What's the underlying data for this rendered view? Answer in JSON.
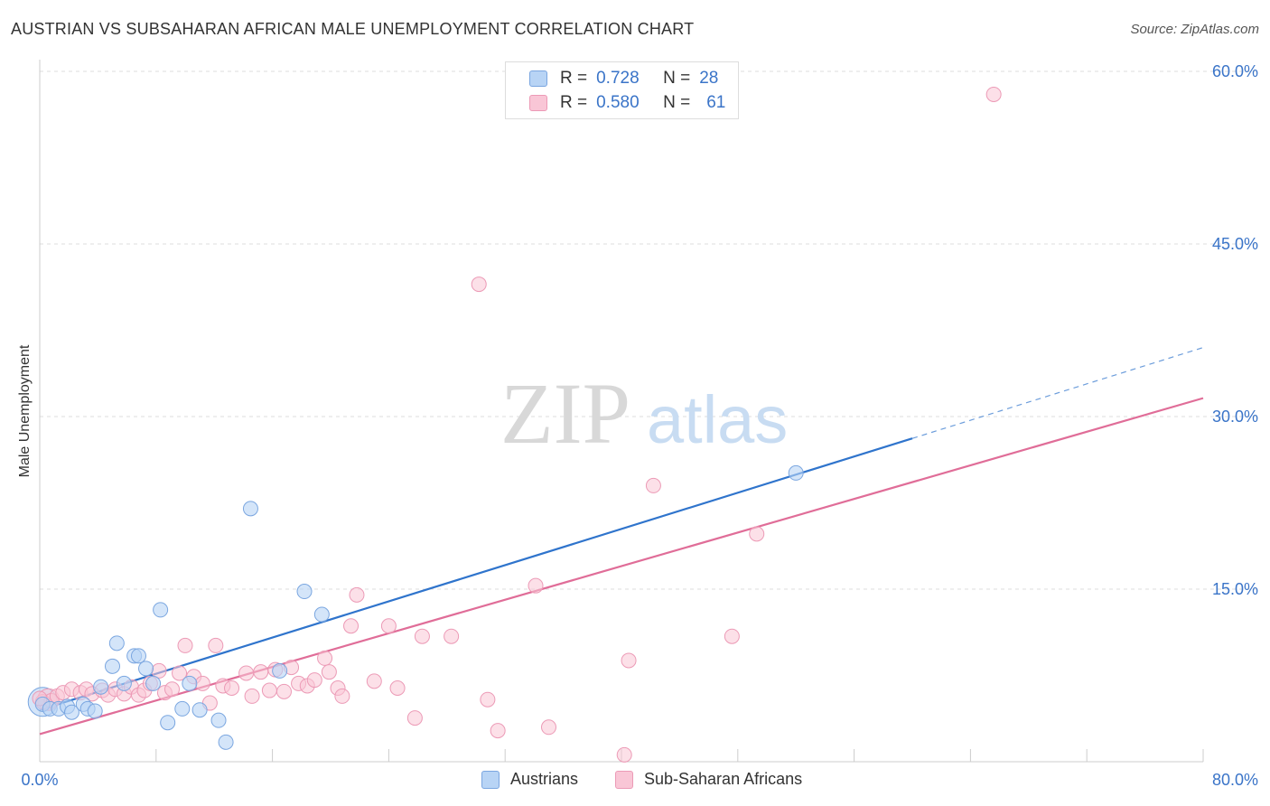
{
  "title": "AUSTRIAN VS SUBSAHARAN AFRICAN MALE UNEMPLOYMENT CORRELATION CHART",
  "source": "Source: ZipAtlas.com",
  "watermark": {
    "zip": "ZIP",
    "atlas": "atlas"
  },
  "colors": {
    "blue_fill": "#b8d4f5",
    "blue_stroke": "#7aa6e0",
    "blue_line": "#2f74cc",
    "pink_fill": "#f9c6d6",
    "pink_stroke": "#ec9ab6",
    "pink_line": "#e06d98",
    "axis_label": "#3a74c8",
    "grid": "#dddddd"
  },
  "legend_top": {
    "rows": [
      {
        "r_label": "R =",
        "r_value": "0.728",
        "n_label": "N =",
        "n_value": "28"
      },
      {
        "r_label": "R =",
        "r_value": "0.580",
        "n_label": "N =",
        "n_value": "61"
      }
    ]
  },
  "chart_data": {
    "type": "scatter",
    "title": "AUSTRIAN VS SUBSAHARAN AFRICAN MALE UNEMPLOYMENT CORRELATION CHART",
    "xlabel": "",
    "ylabel": "Male Unemployment",
    "xlim": [
      0,
      80
    ],
    "ylim": [
      0,
      62
    ],
    "x_tick_labels": [
      "0.0%",
      "80.0%"
    ],
    "y_ticks": [
      15,
      30,
      45,
      60
    ],
    "y_tick_labels": [
      "15.0%",
      "30.0%",
      "45.0%",
      "60.0%"
    ],
    "legend_position": "bottom-center",
    "series": [
      {
        "name": "Austrians",
        "r": 0.728,
        "n": 28,
        "points": [
          [
            0.2,
            5.0
          ],
          [
            0.7,
            4.6
          ],
          [
            1.3,
            4.6
          ],
          [
            1.9,
            4.8
          ],
          [
            2.2,
            4.3
          ],
          [
            3.0,
            5.0
          ],
          [
            3.3,
            4.6
          ],
          [
            3.8,
            4.4
          ],
          [
            4.2,
            6.5
          ],
          [
            5.0,
            8.3
          ],
          [
            5.3,
            10.3
          ],
          [
            5.8,
            6.8
          ],
          [
            6.5,
            9.2
          ],
          [
            6.8,
            9.2
          ],
          [
            7.3,
            8.1
          ],
          [
            7.8,
            6.8
          ],
          [
            8.3,
            13.2
          ],
          [
            8.8,
            3.4
          ],
          [
            9.8,
            4.6
          ],
          [
            10.3,
            6.8
          ],
          [
            11.0,
            4.5
          ],
          [
            12.3,
            3.6
          ],
          [
            12.8,
            1.7
          ],
          [
            14.5,
            22.0
          ],
          [
            16.5,
            7.9
          ],
          [
            18.2,
            14.8
          ],
          [
            19.4,
            12.8
          ],
          [
            52.0,
            25.1
          ]
        ],
        "trend": {
          "x0": 0,
          "y0": 4.5,
          "x1": 60,
          "y1": 28.1,
          "dashed_to_x": 80,
          "dashed_to_y": 36.0
        }
      },
      {
        "name": "Sub-Saharan Africans",
        "r": 0.58,
        "n": 61,
        "points": [
          [
            0.2,
            5.2
          ],
          [
            0.8,
            5.3
          ],
          [
            1.2,
            5.7
          ],
          [
            1.6,
            6.0
          ],
          [
            2.2,
            6.3
          ],
          [
            2.8,
            6.0
          ],
          [
            3.2,
            6.3
          ],
          [
            3.6,
            5.9
          ],
          [
            4.3,
            6.2
          ],
          [
            4.7,
            5.8
          ],
          [
            5.2,
            6.3
          ],
          [
            5.8,
            5.9
          ],
          [
            6.3,
            6.5
          ],
          [
            6.8,
            5.8
          ],
          [
            7.2,
            6.2
          ],
          [
            7.6,
            6.8
          ],
          [
            8.2,
            7.9
          ],
          [
            8.6,
            6.0
          ],
          [
            9.1,
            6.3
          ],
          [
            9.6,
            7.7
          ],
          [
            10.0,
            10.1
          ],
          [
            10.6,
            7.4
          ],
          [
            11.2,
            6.8
          ],
          [
            11.7,
            5.1
          ],
          [
            12.1,
            10.1
          ],
          [
            12.6,
            6.6
          ],
          [
            13.2,
            6.4
          ],
          [
            14.2,
            7.7
          ],
          [
            14.6,
            5.7
          ],
          [
            15.2,
            7.8
          ],
          [
            15.8,
            6.2
          ],
          [
            16.2,
            8.0
          ],
          [
            16.8,
            6.1
          ],
          [
            17.3,
            8.2
          ],
          [
            17.8,
            6.8
          ],
          [
            18.4,
            6.6
          ],
          [
            18.9,
            7.1
          ],
          [
            19.6,
            9.0
          ],
          [
            19.9,
            7.8
          ],
          [
            20.5,
            6.4
          ],
          [
            20.8,
            5.7
          ],
          [
            21.4,
            11.8
          ],
          [
            21.8,
            14.5
          ],
          [
            23.0,
            7.0
          ],
          [
            24.0,
            11.8
          ],
          [
            24.6,
            6.4
          ],
          [
            25.8,
            3.8
          ],
          [
            26.3,
            10.9
          ],
          [
            28.3,
            10.9
          ],
          [
            30.2,
            41.5
          ],
          [
            30.8,
            5.4
          ],
          [
            31.5,
            2.7
          ],
          [
            34.1,
            15.3
          ],
          [
            35.0,
            3.0
          ],
          [
            40.2,
            0.6
          ],
          [
            40.5,
            8.8
          ],
          [
            42.2,
            24.0
          ],
          [
            47.6,
            10.9
          ],
          [
            49.3,
            19.8
          ],
          [
            65.6,
            58.0
          ],
          [
            0.0,
            5.5
          ]
        ],
        "trend": {
          "x0": 0,
          "y0": 2.4,
          "x1": 80,
          "y1": 31.6
        }
      }
    ]
  },
  "legend_bottom": {
    "items": [
      {
        "label": "Austrians"
      },
      {
        "label": "Sub-Saharan Africans"
      }
    ]
  }
}
